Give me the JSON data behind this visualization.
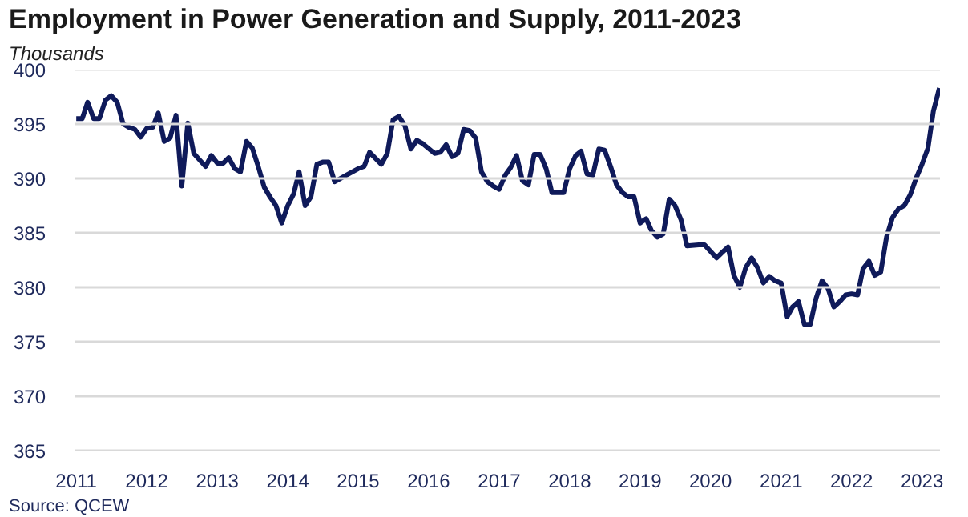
{
  "chart_data": {
    "type": "line",
    "title": "Employment in Power Generation and Supply, 2011-2023",
    "subtitle": "Thousands",
    "annotations": [
      "Source: QCEW"
    ],
    "x": [
      "2011-01",
      "2011-02",
      "2011-03",
      "2011-04",
      "2011-05",
      "2011-06",
      "2011-07",
      "2011-08",
      "2011-09",
      "2011-10",
      "2011-11",
      "2011-12",
      "2012-01",
      "2012-02",
      "2012-03",
      "2012-04",
      "2012-05",
      "2012-06",
      "2012-07",
      "2012-08",
      "2012-09",
      "2012-10",
      "2012-11",
      "2012-12",
      "2013-01",
      "2013-02",
      "2013-03",
      "2013-04",
      "2013-05",
      "2013-06",
      "2013-07",
      "2013-08",
      "2013-09",
      "2013-10",
      "2013-11",
      "2013-12",
      "2014-01",
      "2014-02",
      "2014-03",
      "2014-04",
      "2014-05",
      "2014-06",
      "2014-07",
      "2014-08",
      "2014-09",
      "2014-11",
      "2015-01",
      "2015-02",
      "2015-03",
      "2015-05",
      "2015-06",
      "2015-07",
      "2015-08",
      "2015-09",
      "2015-10",
      "2015-11",
      "2015-12",
      "2016-02",
      "2016-03",
      "2016-04",
      "2016-05",
      "2016-06",
      "2016-07",
      "2016-08",
      "2016-09",
      "2016-10",
      "2016-11",
      "2016-12",
      "2017-01",
      "2017-02",
      "2017-03",
      "2017-04",
      "2017-05",
      "2017-06",
      "2017-07",
      "2017-08",
      "2017-09",
      "2017-10",
      "2017-12",
      "2018-01",
      "2018-02",
      "2018-03",
      "2018-04",
      "2018-05",
      "2018-06",
      "2018-07",
      "2018-08",
      "2018-09",
      "2018-10",
      "2018-11",
      "2018-12",
      "2019-01",
      "2019-02",
      "2019-03",
      "2019-04",
      "2019-05",
      "2019-06",
      "2019-07",
      "2019-08",
      "2019-09",
      "2019-11",
      "2019-12",
      "2020-02",
      "2020-03",
      "2020-04",
      "2020-05",
      "2020-06",
      "2020-07",
      "2020-08",
      "2020-09",
      "2020-10",
      "2020-11",
      "2020-12",
      "2021-01",
      "2021-02",
      "2021-03",
      "2021-04",
      "2021-05",
      "2021-06",
      "2021-07",
      "2021-08",
      "2021-09",
      "2021-10",
      "2021-11",
      "2021-12",
      "2022-01",
      "2022-02",
      "2022-03",
      "2022-04",
      "2022-05",
      "2022-06",
      "2022-07",
      "2022-08",
      "2022-09",
      "2022-10",
      "2022-11",
      "2022-12",
      "2023-01",
      "2023-02",
      "2023-03",
      "2023-04"
    ],
    "series": [
      {
        "color": "#0f1a5a",
        "values": [
          395.5,
          395.5,
          397,
          395.5,
          395.5,
          397.2,
          397.6,
          397,
          395,
          394.7,
          394.5,
          393.8,
          394.6,
          394.7,
          396,
          393.4,
          393.7,
          395.8,
          389.3,
          395.1,
          392.3,
          391.7,
          391.1,
          392.1,
          391.4,
          391.4,
          391.9,
          390.9,
          390.6,
          393.4,
          392.8,
          391.1,
          389.2,
          388.3,
          387.5,
          385.9,
          387.5,
          388.6,
          390.6,
          387.5,
          388.3,
          391.3,
          391.5,
          391.5,
          389.7,
          390.3,
          390.9,
          391.1,
          392.4,
          391.3,
          392.3,
          395.4,
          395.7,
          394.8,
          392.7,
          393.5,
          393.2,
          392.3,
          392.4,
          393.1,
          392,
          392.3,
          394.5,
          394.4,
          393.7,
          390.6,
          389.7,
          389.3,
          389,
          390.3,
          391,
          392.1,
          389.8,
          389.4,
          392.2,
          392.2,
          390.9,
          388.7,
          388.7,
          390.9,
          392.1,
          392.5,
          390.4,
          390.3,
          392.7,
          392.6,
          391.1,
          389.4,
          388.7,
          388.3,
          388.3,
          385.9,
          386.3,
          385.2,
          384.6,
          384.9,
          388.1,
          387.5,
          386.2,
          383.8,
          383.9,
          383.9,
          382.7,
          383.2,
          383.7,
          381.1,
          380,
          381.8,
          382.7,
          381.8,
          380.4,
          381,
          380.6,
          380.4,
          377.3,
          378.2,
          378.7,
          376.6,
          376.6,
          379,
          380.6,
          379.9,
          378.2,
          378.7,
          379.3,
          379.4,
          379.3,
          381.7,
          382.4,
          381.1,
          381.4,
          384.6,
          386.4,
          387.2,
          387.5,
          388.5,
          390,
          391.3,
          392.8,
          396.2,
          398.3
        ]
      }
    ],
    "xlim": [
      "2010-12-23",
      "2023-04-04"
    ],
    "xticks": [
      {
        "value": "2011-01-01",
        "label": "2011"
      },
      {
        "value": "2012-01-01",
        "label": "2012"
      },
      {
        "value": "2013-01-01",
        "label": "2013"
      },
      {
        "value": "2014-01-01",
        "label": "2014"
      },
      {
        "value": "2015-01-01",
        "label": "2015"
      },
      {
        "value": "2016-01-01",
        "label": "2016"
      },
      {
        "value": "2017-01-01",
        "label": "2017"
      },
      {
        "value": "2018-01-01",
        "label": "2018"
      },
      {
        "value": "2019-01-01",
        "label": "2019"
      },
      {
        "value": "2020-01-01",
        "label": "2020"
      },
      {
        "value": "2021-01-01",
        "label": "2021"
      },
      {
        "value": "2022-01-01",
        "label": "2022"
      },
      {
        "value": "2023-01-01",
        "label": "2023"
      }
    ],
    "ylim": [
      365,
      400
    ],
    "yticks": [
      365,
      370,
      375,
      380,
      385,
      390,
      395,
      400
    ],
    "grid": "y",
    "line_style": "solid"
  }
}
